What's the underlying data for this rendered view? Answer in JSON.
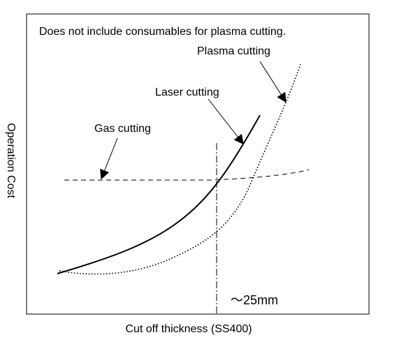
{
  "note": "Does not include consumables for plasma cutting.",
  "labels": {
    "plasma": "Plasma cutting",
    "laser": "Laser cutting",
    "gas": "Gas cutting",
    "threshold": "～25mm"
  },
  "x_axis_label": "Cut off thickness (SS400)",
  "y_axis_label": "Operation Cost"
}
